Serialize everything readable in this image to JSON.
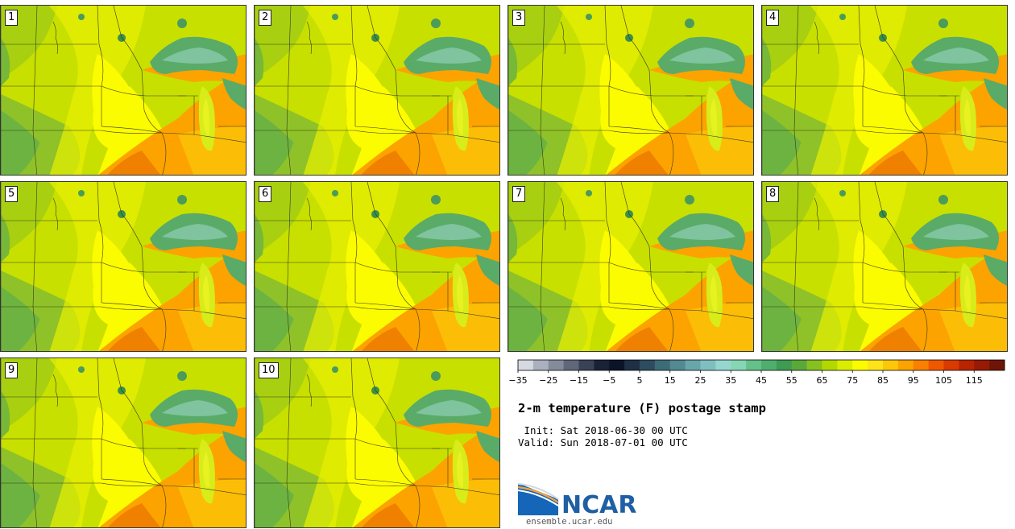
{
  "product": {
    "title": "2-m temperature (F) postage stamp",
    "init_line": " Init: Sat 2018-06-30 00 UTC",
    "valid_line": "Valid: Sun 2018-07-01 00 UTC"
  },
  "members": [
    "1",
    "2",
    "3",
    "4",
    "5",
    "6",
    "7",
    "8",
    "9",
    "10"
  ],
  "colorbar": {
    "tick_labels": [
      "−35",
      "−25",
      "−15",
      "−5",
      "5",
      "15",
      "25",
      "35",
      "45",
      "55",
      "65",
      "75",
      "85",
      "95",
      "105",
      "115"
    ],
    "colors": [
      "#d6d9e2",
      "#aab0bd",
      "#848c9c",
      "#5f6879",
      "#3a4257",
      "#1a2236",
      "#0c1428",
      "#1f2f45",
      "#2d4c5f",
      "#3e6b78",
      "#528992",
      "#69a6ab",
      "#80bfbf",
      "#97d6d0",
      "#86d6b4",
      "#66c08a",
      "#4fae6d",
      "#3f9a52",
      "#5ba83a",
      "#86c21f",
      "#b3d800",
      "#dcec00",
      "#fcfc00",
      "#fde41a",
      "#fcc70a",
      "#fca300",
      "#f98000",
      "#f05800",
      "#d83a00",
      "#b82400",
      "#961a05",
      "#6e1508"
    ]
  },
  "branding": {
    "logo_text": "NCAR",
    "url": "ensemble.ucar.edu"
  }
}
